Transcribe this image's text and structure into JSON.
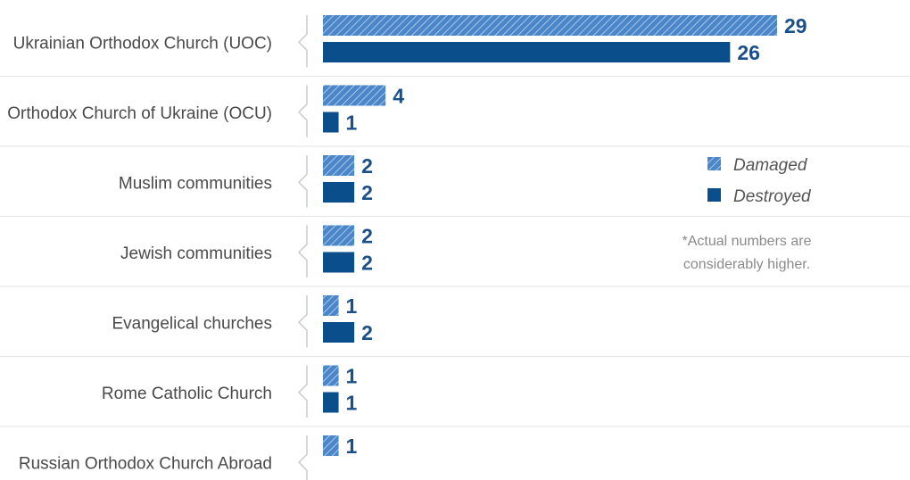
{
  "chart_data": {
    "type": "bar",
    "orientation": "horizontal",
    "categories": [
      "Ukrainian Orthodox Church (UOC)",
      "Orthodox Church of Ukraine (OCU)",
      "Muslim communities",
      "Jewish communities",
      "Evangelical churches",
      "Rome Catholic Church",
      "Russian Orthodox Church Abroad"
    ],
    "series": [
      {
        "name": "Damaged",
        "values": [
          29,
          4,
          2,
          2,
          1,
          1,
          1
        ],
        "color": "#4a86c8",
        "pattern": "hatched"
      },
      {
        "name": "Destroyed",
        "values": [
          26,
          1,
          2,
          2,
          2,
          1,
          null
        ],
        "color": "#0a4f8c",
        "pattern": "solid"
      }
    ],
    "legend_position": "right",
    "grid": false
  },
  "legend": {
    "damaged_label": "Damaged",
    "destroyed_label": "Destroyed"
  },
  "note": {
    "line1": "*Actual numbers are",
    "line2": "considerably higher."
  },
  "colors": {
    "damaged": "#4a86c8",
    "destroyed": "#0a4f8c",
    "value_text": "#1a4f8a",
    "separator": "#e6e6e6",
    "bracket": "#c8c8c8"
  }
}
